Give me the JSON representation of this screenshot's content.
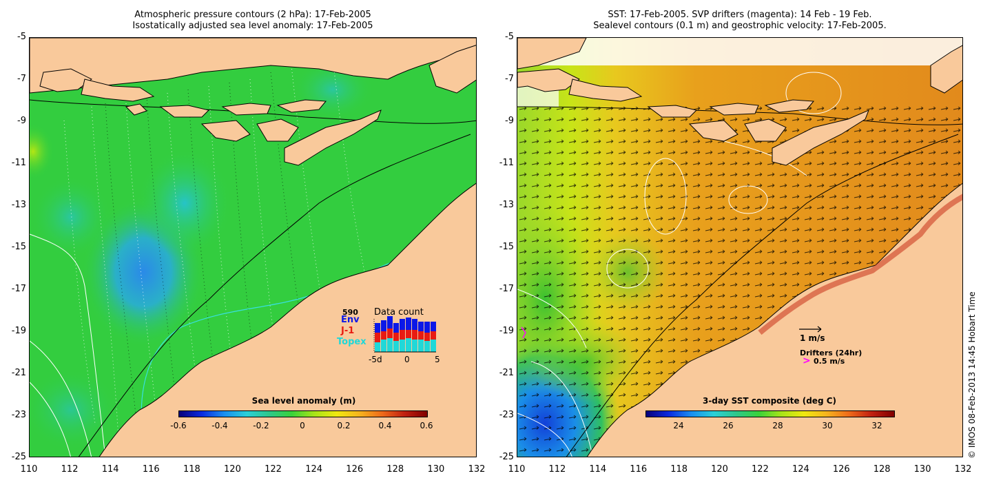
{
  "left_panel": {
    "title_line1": "Atmospheric pressure contours (2 hPa): 17-Feb-2005",
    "title_line2": "Isostatically adjusted sea level anomaly: 17-Feb-2005",
    "y_ticks": [
      "-5",
      "-7",
      "-9",
      "-11",
      "-13",
      "-15",
      "-17",
      "-19",
      "-21",
      "-23",
      "-25"
    ],
    "x_ticks": [
      "110",
      "112",
      "114",
      "116",
      "118",
      "120",
      "122",
      "124",
      "126",
      "128",
      "130",
      "132"
    ],
    "colorbar": {
      "label": "Sea level anomaly (m)",
      "ticks": [
        "-0.6",
        "-0.4",
        "-0.2",
        "0",
        "0.2",
        "0.4",
        "0.6"
      ],
      "range": [
        -0.6,
        0.6
      ]
    },
    "data_count": {
      "title": "Data count",
      "max_label": "590",
      "series": [
        "Env",
        "J-1",
        "Topex"
      ],
      "series_colors": [
        "#0b18e8",
        "#e81b12",
        "#20d8d8"
      ],
      "x_ticks": [
        "-5d",
        "0",
        "5"
      ]
    }
  },
  "right_panel": {
    "title_line1": "SST: 17-Feb-2005. SVP drifters (magenta): 14 Feb - 19 Feb.",
    "title_line2": "Sealevel contours (0.1 m) and geostrophic velocity: 17-Feb-2005.",
    "y_ticks": [
      "-5",
      "-7",
      "-9",
      "-11",
      "-13",
      "-15",
      "-17",
      "-19",
      "-21",
      "-23",
      "-25"
    ],
    "x_ticks": [
      "110",
      "112",
      "114",
      "116",
      "118",
      "120",
      "122",
      "124",
      "126",
      "128",
      "130",
      "132"
    ],
    "colorbar": {
      "label": "3-day SST composite (deg C)",
      "ticks": [
        "24",
        "26",
        "28",
        "30",
        "32"
      ],
      "range": [
        22.7,
        32.8
      ]
    },
    "velocity_scale_label": "1 m/s",
    "drifters_label": "Drifters (24hr)",
    "drifter_speed_label": "0.5 m/s",
    "drifter_symbol": ">"
  },
  "credit": "© IMOS 08-Feb-2013 14:45 Hobart Time",
  "colors": {
    "land": "#f9c99b",
    "sla_ocean": "#33d13a",
    "sst_ocean": "#e59a1e",
    "drifter": "#ff00ff",
    "sla_contour": "#38e0e0"
  }
}
